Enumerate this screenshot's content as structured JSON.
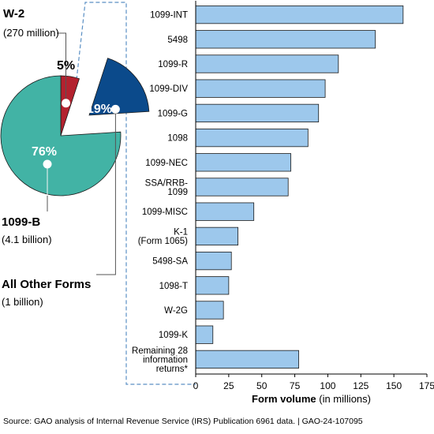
{
  "source_text": "Source: GAO analysis of Internal Revenue Service (IRS) Publication 6961 data.  |  GAO-24-107095",
  "chart_data": [
    {
      "type": "pie",
      "slices": [
        {
          "label": "W-2",
          "sublabel": "(270 million)",
          "pct_label": "5%",
          "value": 5,
          "color": "#b3222f",
          "pct_color": "#000000"
        },
        {
          "label": "All Other Forms",
          "sublabel": "(1 billion)",
          "pct_label": "19%",
          "value": 19,
          "color": "#0b4a8b",
          "pct_color": "#ffffff",
          "exploded": true
        },
        {
          "label": "1099-B",
          "sublabel": "(4.1 billion)",
          "pct_label": "76%",
          "value": 76,
          "color": "#42b3a5",
          "pct_color": "#ffffff"
        }
      ]
    },
    {
      "type": "bar",
      "orientation": "horizontal",
      "categories": [
        [
          "1099-INT"
        ],
        [
          "5498"
        ],
        [
          "1099-R"
        ],
        [
          "1099-DIV"
        ],
        [
          "1099-G"
        ],
        [
          "1098"
        ],
        [
          "1099-NEC"
        ],
        [
          "SSA/RRB-",
          "1099"
        ],
        [
          "1099-MISC"
        ],
        [
          "K-1",
          "(Form 1065)"
        ],
        [
          "5498-SA"
        ],
        [
          "1098-T"
        ],
        [
          "W-2G"
        ],
        [
          "1099-K"
        ],
        [
          "Remaining 28",
          "information",
          "returns*"
        ]
      ],
      "values": [
        157,
        136,
        108,
        98,
        93,
        85,
        72,
        70,
        44,
        32,
        27,
        25,
        21,
        13,
        78
      ],
      "xlabel": "Form volume",
      "xlabel_suffix": "(in millions)",
      "xticks": [
        "0",
        "25",
        "50",
        "75",
        "100",
        "125",
        "150",
        "175"
      ],
      "xlim": [
        0,
        175
      ],
      "bar_color": "#9dc8ec",
      "bar_edge": "#1a1a1a",
      "grid": false
    }
  ]
}
